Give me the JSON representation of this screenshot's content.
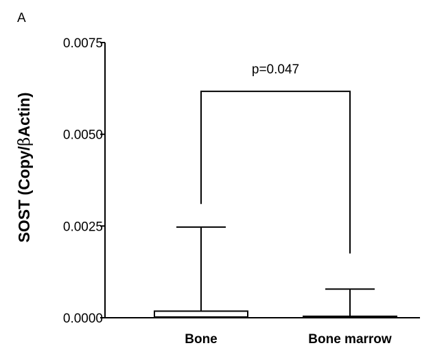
{
  "panel_label": "A",
  "chart_data": {
    "type": "box",
    "title": "",
    "xlabel": "",
    "ylabel_prefix": "SOST (Copy/",
    "ylabel_greek": "β",
    "ylabel_suffix": "Actin)",
    "ylim": [
      0,
      0.0075
    ],
    "yticks": [
      0.0,
      0.0025,
      0.005,
      0.0075
    ],
    "ytick_labels": [
      "0.0000",
      "0.0025",
      "0.0050",
      "0.0075"
    ],
    "categories": [
      "Bone",
      "Bone marrow"
    ],
    "boxes": [
      {
        "category": "Bone",
        "min": 0.0,
        "q1": 0.0,
        "median": 2e-05,
        "q3": 0.00018,
        "max": 0.00247
      },
      {
        "category": "Bone marrow",
        "min": 0.0,
        "q1": 0.0,
        "median": 2e-05,
        "q3": 4e-05,
        "max": 0.00078
      }
    ],
    "significance": {
      "label": "p=0.047",
      "bracket_y": 0.00617,
      "left_end_y": 0.0031,
      "right_end_y": 0.00175
    },
    "grid": false,
    "legend": "none"
  }
}
